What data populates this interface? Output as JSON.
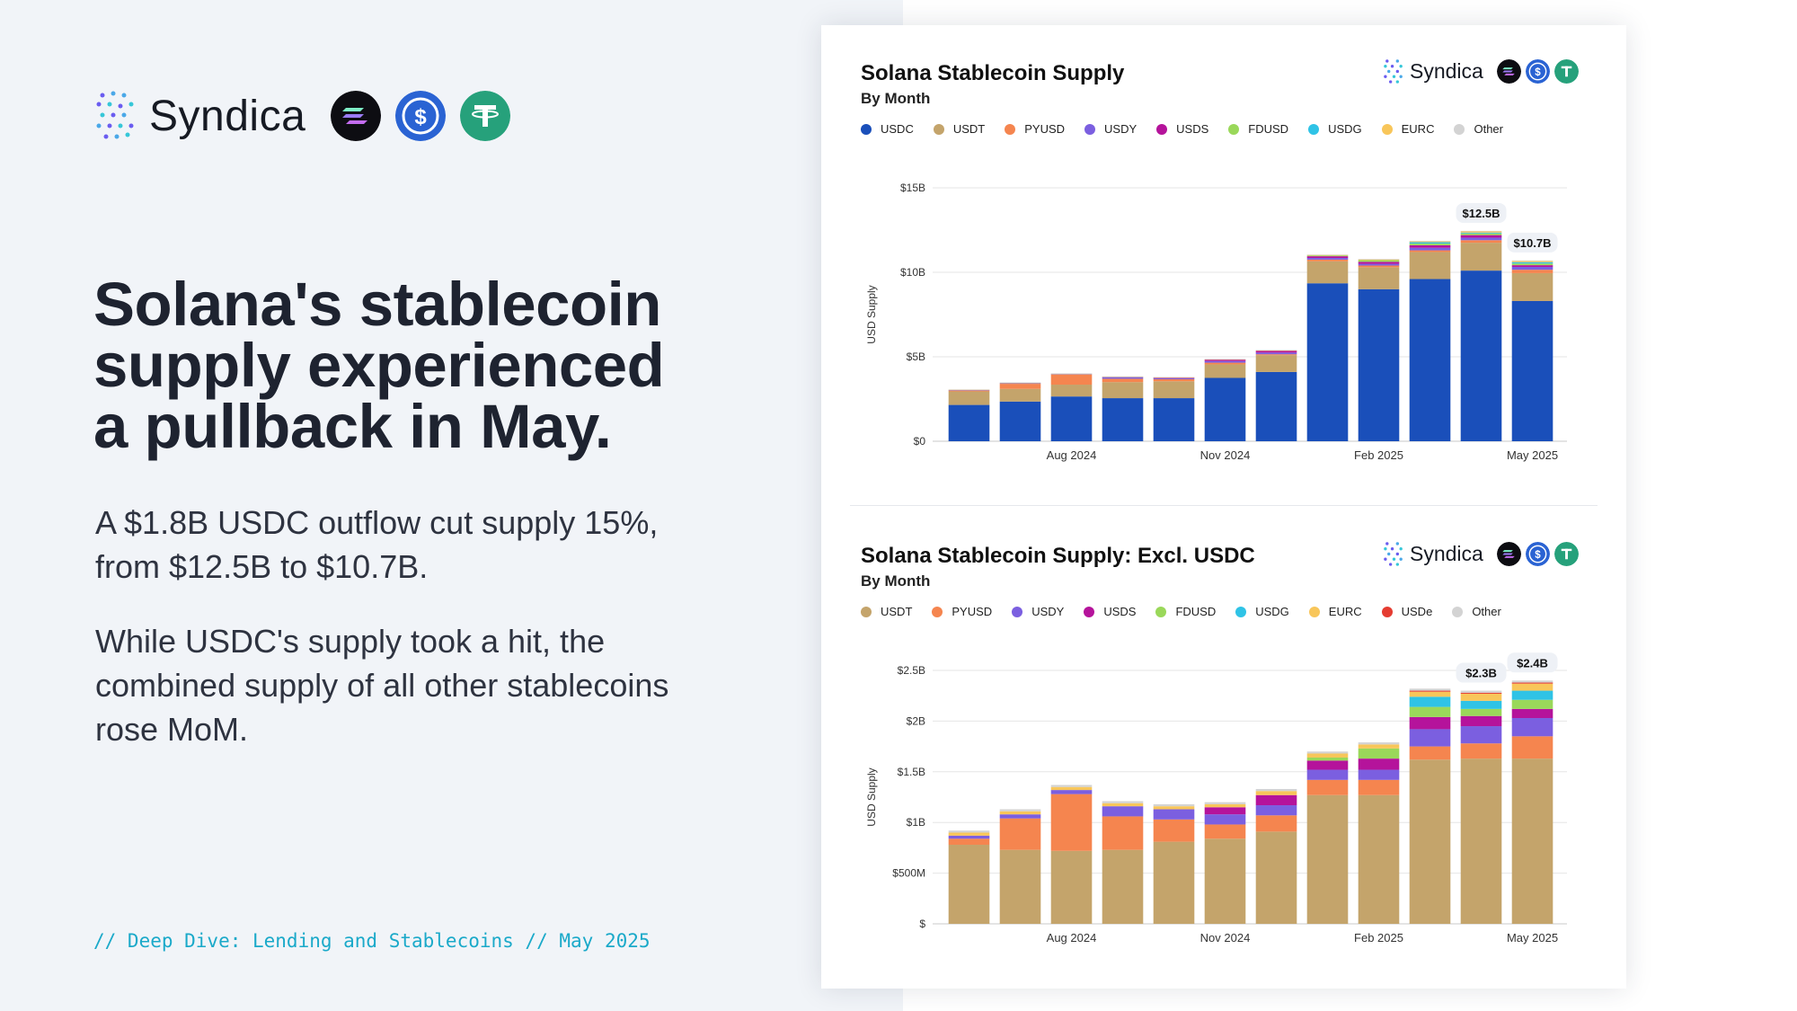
{
  "brand": {
    "name": "Syndica"
  },
  "headline": "Solana's stablecoin supply experienced a pullback in May.",
  "para1": "A $1.8B USDC outflow cut supply 15%, from $12.5B to $10.7B.",
  "para2": "While USDC's supply took a hit, the combined supply of all other stablecoins rose MoM.",
  "footer": "// Deep Dive: Lending and Stablecoins // May 2025",
  "tokens": [
    "solana-icon",
    "usdc-icon",
    "usdt-icon"
  ],
  "colors": {
    "USDC": "#1a4fba",
    "USDT": "#c4a46b",
    "PYUSD": "#f5854f",
    "USDY": "#7b5fe0",
    "USDS": "#b5139b",
    "FDUSD": "#9ad85a",
    "USDG": "#2fc3e6",
    "EURC": "#f8c65a",
    "USDe": "#e53c31",
    "Other": "#d3d3d3"
  },
  "chart_data": [
    {
      "type": "bar",
      "stacked": true,
      "title": "Solana Stablecoin Supply",
      "subtitle": "By Month",
      "ylabel": "USD Supply",
      "ylim": [
        0,
        15
      ],
      "yticks": [
        0,
        5,
        10,
        15
      ],
      "ytick_labels": [
        "$0",
        "$5B",
        "$10B",
        "$15B"
      ],
      "x_tick_labels": [
        {
          "index": 2,
          "label": "Aug 2024"
        },
        {
          "index": 5,
          "label": "Nov 2024"
        },
        {
          "index": 8,
          "label": "Feb 2025"
        },
        {
          "index": 11,
          "label": "May 2025"
        }
      ],
      "categories": [
        "Jun 2024",
        "Jul 2024",
        "Aug 2024",
        "Sep 2024",
        "Oct 2024",
        "Nov 2024",
        "Dec 2024",
        "Jan 2025",
        "Feb 2025",
        "Mar 2025",
        "Apr 2025",
        "May 2025"
      ],
      "legend": [
        "USDC",
        "USDT",
        "PYUSD",
        "USDY",
        "USDS",
        "FDUSD",
        "USDG",
        "EURC",
        "Other"
      ],
      "series": [
        {
          "name": "USDC",
          "values": [
            2.15,
            2.35,
            2.65,
            2.55,
            2.55,
            3.75,
            4.1,
            9.35,
            9.0,
            9.6,
            10.1,
            8.3
          ]
        },
        {
          "name": "USDT",
          "values": [
            0.8,
            0.75,
            0.7,
            0.95,
            1.0,
            0.8,
            1.0,
            1.3,
            1.3,
            1.6,
            1.65,
            1.65
          ]
        },
        {
          "name": "PYUSD",
          "values": [
            0.05,
            0.3,
            0.6,
            0.2,
            0.12,
            0.1,
            0.05,
            0.1,
            0.1,
            0.1,
            0.15,
            0.2
          ]
        },
        {
          "name": "USDY",
          "values": [
            0.03,
            0.03,
            0.03,
            0.1,
            0.07,
            0.1,
            0.1,
            0.1,
            0.1,
            0.15,
            0.15,
            0.17
          ]
        },
        {
          "name": "USDS",
          "values": [
            0.0,
            0.0,
            0.0,
            0.0,
            0.02,
            0.08,
            0.1,
            0.1,
            0.12,
            0.15,
            0.15,
            0.1
          ]
        },
        {
          "name": "FDUSD",
          "values": [
            0.0,
            0.0,
            0.0,
            0.0,
            0.0,
            0.0,
            0.0,
            0.05,
            0.1,
            0.1,
            0.1,
            0.1
          ]
        },
        {
          "name": "USDG",
          "values": [
            0.0,
            0.0,
            0.0,
            0.0,
            0.0,
            0.0,
            0.0,
            0.0,
            0.0,
            0.08,
            0.05,
            0.08
          ]
        },
        {
          "name": "EURC",
          "values": [
            0.02,
            0.03,
            0.02,
            0.02,
            0.02,
            0.02,
            0.03,
            0.03,
            0.04,
            0.05,
            0.07,
            0.07
          ]
        },
        {
          "name": "Other",
          "values": [
            0.02,
            0.02,
            0.02,
            0.02,
            0.02,
            0.02,
            0.02,
            0.02,
            0.03,
            0.03,
            0.03,
            0.03
          ]
        }
      ],
      "annotations": [
        {
          "index": 10,
          "label": "$12.5B"
        },
        {
          "index": 11,
          "label": "$10.7B"
        }
      ]
    },
    {
      "type": "bar",
      "stacked": true,
      "title": "Solana Stablecoin Supply: Excl. USDC",
      "subtitle": "By Month",
      "ylabel": "USD Supply",
      "ylim": [
        0,
        2.5
      ],
      "yticks": [
        0,
        0.5,
        1,
        1.5,
        2,
        2.5
      ],
      "ytick_labels": [
        "$",
        "$500M",
        "$1B",
        "$1.5B",
        "$2B",
        "$2.5B"
      ],
      "x_tick_labels": [
        {
          "index": 2,
          "label": "Aug 2024"
        },
        {
          "index": 5,
          "label": "Nov 2024"
        },
        {
          "index": 8,
          "label": "Feb 2025"
        },
        {
          "index": 11,
          "label": "May 2025"
        }
      ],
      "categories": [
        "Jun 2024",
        "Jul 2024",
        "Aug 2024",
        "Sep 2024",
        "Oct 2024",
        "Nov 2024",
        "Dec 2024",
        "Jan 2025",
        "Feb 2025",
        "Mar 2025",
        "Apr 2025",
        "May 2025"
      ],
      "legend": [
        "USDT",
        "PYUSD",
        "USDY",
        "USDS",
        "FDUSD",
        "USDG",
        "EURC",
        "USDe",
        "Other"
      ],
      "series": [
        {
          "name": "USDT",
          "values": [
            0.78,
            0.73,
            0.72,
            0.73,
            0.81,
            0.84,
            0.91,
            1.27,
            1.27,
            1.62,
            1.63,
            1.63
          ]
        },
        {
          "name": "PYUSD",
          "values": [
            0.06,
            0.31,
            0.56,
            0.33,
            0.22,
            0.14,
            0.16,
            0.15,
            0.15,
            0.13,
            0.15,
            0.22
          ]
        },
        {
          "name": "USDY",
          "values": [
            0.03,
            0.04,
            0.04,
            0.1,
            0.1,
            0.1,
            0.1,
            0.1,
            0.1,
            0.17,
            0.17,
            0.18
          ]
        },
        {
          "name": "USDS",
          "values": [
            0.0,
            0.0,
            0.0,
            0.0,
            0.0,
            0.07,
            0.1,
            0.09,
            0.11,
            0.12,
            0.1,
            0.09
          ]
        },
        {
          "name": "FDUSD",
          "values": [
            0.0,
            0.0,
            0.0,
            0.0,
            0.0,
            0.0,
            0.0,
            0.03,
            0.1,
            0.1,
            0.07,
            0.09
          ]
        },
        {
          "name": "USDG",
          "values": [
            0.0,
            0.0,
            0.0,
            0.0,
            0.0,
            0.0,
            0.0,
            0.0,
            0.0,
            0.1,
            0.08,
            0.09
          ]
        },
        {
          "name": "EURC",
          "values": [
            0.03,
            0.03,
            0.03,
            0.03,
            0.03,
            0.03,
            0.04,
            0.04,
            0.04,
            0.05,
            0.07,
            0.07
          ]
        },
        {
          "name": "USDe",
          "values": [
            0.0,
            0.0,
            0.0,
            0.0,
            0.0,
            0.0,
            0.0,
            0.0,
            0.0,
            0.01,
            0.01,
            0.01
          ]
        },
        {
          "name": "Other",
          "values": [
            0.02,
            0.02,
            0.02,
            0.02,
            0.02,
            0.02,
            0.02,
            0.02,
            0.02,
            0.02,
            0.02,
            0.02
          ]
        }
      ],
      "annotations": [
        {
          "index": 10,
          "label": "$2.3B"
        },
        {
          "index": 11,
          "label": "$2.4B"
        }
      ]
    }
  ]
}
